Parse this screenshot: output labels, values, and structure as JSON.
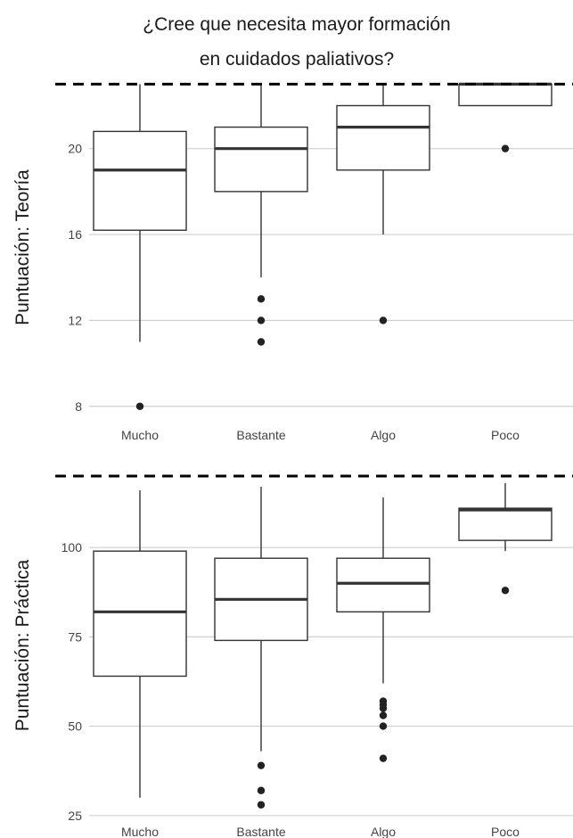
{
  "title_line1": "¿Cree que necesita mayor formación",
  "title_line2": "en cuidados paliativos?",
  "chart_data": [
    {
      "type": "box",
      "ylabel": "Puntuación: Teoría",
      "categories": [
        "Mucho",
        "Bastante",
        "Algo",
        "Poco"
      ],
      "yticks": [
        8,
        12,
        16,
        20
      ],
      "ylim": [
        7.7,
        23.1
      ],
      "reference_line": 23,
      "grid": "horizontal",
      "boxes": [
        {
          "category": "Mucho",
          "q1": 16.2,
          "median": 19,
          "q3": 20.8,
          "whisker_low": 11,
          "whisker_high": 23,
          "outliers": [
            8
          ]
        },
        {
          "category": "Bastante",
          "q1": 18,
          "median": 20,
          "q3": 21,
          "whisker_low": 14,
          "whisker_high": 23,
          "outliers": [
            11,
            12,
            13
          ]
        },
        {
          "category": "Algo",
          "q1": 19,
          "median": 21,
          "q3": 22,
          "whisker_low": 16,
          "whisker_high": 23,
          "outliers": [
            12
          ]
        },
        {
          "category": "Poco",
          "q1": 22,
          "median": 23,
          "q3": 23,
          "whisker_low": 22,
          "whisker_high": 23,
          "outliers": [
            20
          ]
        }
      ]
    },
    {
      "type": "box",
      "ylabel": "Puntuación: Práctica",
      "categories": [
        "Mucho",
        "Bastante",
        "Algo",
        "Poco"
      ],
      "yticks": [
        25,
        50,
        75,
        100
      ],
      "ylim": [
        24.2,
        121
      ],
      "reference_line": 120,
      "grid": "horizontal",
      "boxes": [
        {
          "category": "Mucho",
          "q1": 64,
          "median": 82,
          "q3": 99,
          "whisker_low": 30,
          "whisker_high": 116,
          "outliers": []
        },
        {
          "category": "Bastante",
          "q1": 74,
          "median": 85.5,
          "q3": 97,
          "whisker_low": 43,
          "whisker_high": 117,
          "outliers": [
            28,
            32,
            39
          ]
        },
        {
          "category": "Algo",
          "q1": 82,
          "median": 90,
          "q3": 97,
          "whisker_low": 62,
          "whisker_high": 114,
          "outliers": [
            41,
            50,
            53,
            55,
            56,
            57
          ]
        },
        {
          "category": "Poco",
          "q1": 102,
          "median": 110.5,
          "q3": 111,
          "whisker_low": 99,
          "whisker_high": 118,
          "outliers": [
            88
          ]
        }
      ]
    }
  ]
}
